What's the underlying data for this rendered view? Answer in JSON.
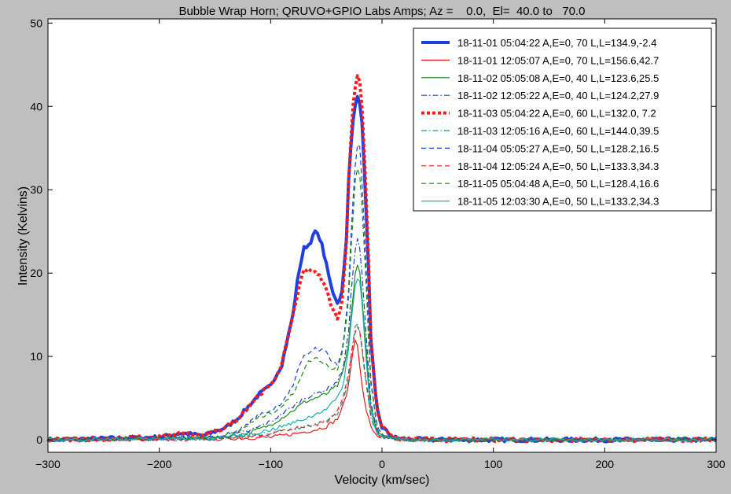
{
  "chart_data": {
    "type": "line",
    "title": "Bubble Wrap Horn; QRUVO+GPIO Labs Amps; Az =    0.0,  El=  40.0 to   70.0",
    "xlabel": "Velocity (km/sec)",
    "ylabel": "Intensity (Kelvins)",
    "xlim": [
      -300,
      300
    ],
    "ylim": [
      -1.5,
      50.5
    ],
    "xticks": [
      -300,
      -200,
      -100,
      0,
      100,
      200,
      300
    ],
    "xtick_labels": [
      "−300",
      "−200",
      "−100",
      "0",
      "100",
      "200",
      "300"
    ],
    "yticks": [
      0,
      10,
      20,
      30,
      40,
      50
    ],
    "ytick_labels": [
      "0",
      "10",
      "20",
      "30",
      "40",
      "50"
    ],
    "grid": false,
    "legend_position": "top-right",
    "series": [
      {
        "name": "18-11-01 05:04:22 A,E=0,  70 L,L=134.9,-2.4",
        "color": "#1f3fe0",
        "style": "solid",
        "width": 4,
        "x": [
          -300,
          -200,
          -180,
          -160,
          -140,
          -130,
          -120,
          -110,
          -100,
          -90,
          -80,
          -75,
          -70,
          -65,
          -60,
          -55,
          -50,
          -45,
          -40,
          -37,
          -35,
          -32,
          -30,
          -27,
          -25,
          -22,
          -20,
          -18,
          -15,
          -12,
          -10,
          -5,
          0,
          10,
          20,
          50,
          100,
          200,
          300
        ],
        "y": [
          0,
          0.3,
          0.8,
          0.5,
          1.5,
          2.5,
          4,
          5.5,
          6.5,
          9,
          15,
          20,
          23,
          23.5,
          25,
          24,
          21,
          18,
          16.5,
          17,
          19,
          24,
          31,
          37,
          40,
          41,
          40.5,
          38,
          30,
          20,
          12,
          4,
          1.5,
          0.3,
          0.1,
          0,
          0,
          0,
          0
        ]
      },
      {
        "name": "18-11-01 12:05:07 A,E=0,  70 L,L=156.6,42.7",
        "color": "#e41a1c",
        "style": "solid",
        "width": 1.2,
        "x": [
          -300,
          -150,
          -100,
          -80,
          -60,
          -50,
          -40,
          -35,
          -30,
          -27,
          -24,
          -22,
          -20,
          -18,
          -15,
          -12,
          -10,
          -5,
          0,
          20,
          300
        ],
        "y": [
          0,
          0.1,
          0.3,
          0.7,
          1.2,
          1.6,
          2.5,
          4,
          6.5,
          10,
          12,
          11.5,
          9,
          6.5,
          4,
          2.5,
          1.5,
          0.6,
          0.2,
          0,
          0
        ]
      },
      {
        "name": "18-11-02 05:05:08 A,E=0,  40 L,L=123.6,25.5",
        "color": "#1a8a1a",
        "style": "solid",
        "width": 1.2,
        "x": [
          -300,
          -150,
          -120,
          -100,
          -80,
          -70,
          -60,
          -50,
          -40,
          -35,
          -30,
          -27,
          -24,
          -22,
          -20,
          -18,
          -15,
          -12,
          -10,
          -5,
          0,
          20,
          300
        ],
        "y": [
          0,
          0.2,
          0.8,
          1.8,
          3.5,
          4.5,
          5,
          5.5,
          6.5,
          8,
          11.5,
          16,
          20,
          21,
          20,
          17,
          12,
          7,
          4,
          1.2,
          0.4,
          0,
          0
        ]
      },
      {
        "name": "18-11-02 12:05:22 A,E=0,  40 L,L=124.2,27.9",
        "color": "#1f3fbf",
        "style": "dashdot",
        "width": 1.2,
        "x": [
          -300,
          -150,
          -120,
          -100,
          -80,
          -70,
          -60,
          -50,
          -40,
          -35,
          -30,
          -27,
          -24,
          -22,
          -20,
          -18,
          -15,
          -12,
          -10,
          -5,
          0,
          20,
          300
        ],
        "y": [
          0,
          0.2,
          1,
          2.2,
          4,
          5,
          5.5,
          6,
          7,
          8.5,
          13,
          19,
          23,
          24,
          23,
          20,
          14,
          8,
          4.5,
          1.3,
          0.4,
          0,
          0
        ]
      },
      {
        "name": "18-11-03 05:04:22 A,E=0,  60 L,L=132.0, 7.2",
        "color": "#ff1a1a",
        "style": "dotted",
        "width": 4,
        "x": [
          -300,
          -200,
          -180,
          -160,
          -140,
          -130,
          -120,
          -110,
          -100,
          -90,
          -80,
          -75,
          -70,
          -65,
          -60,
          -55,
          -50,
          -45,
          -40,
          -37,
          -35,
          -32,
          -30,
          -27,
          -25,
          -22,
          -20,
          -18,
          -15,
          -12,
          -10,
          -5,
          0,
          10,
          20,
          50,
          100,
          200,
          300
        ],
        "y": [
          0,
          0.3,
          0.8,
          0.5,
          1.5,
          2.5,
          4,
          5.5,
          6.5,
          9,
          15,
          18,
          20.5,
          20.5,
          20,
          19.5,
          18,
          16,
          14.5,
          15.5,
          18,
          24,
          31,
          38,
          42,
          43.5,
          43,
          40,
          32,
          21,
          12,
          4,
          1.5,
          0.3,
          0.1,
          0,
          0,
          0,
          0
        ]
      },
      {
        "name": "18-11-03 12:05:16 A,E=0,  60 L,L=144.0,39.5",
        "color": "#1a9a9a",
        "style": "dashdot",
        "width": 1.2,
        "x": [
          -300,
          -150,
          -120,
          -100,
          -80,
          -60,
          -50,
          -40,
          -35,
          -30,
          -27,
          -24,
          -22,
          -20,
          -18,
          -15,
          -12,
          -10,
          -5,
          0,
          20,
          300
        ],
        "y": [
          0,
          0.1,
          0.4,
          0.8,
          1.3,
          1.8,
          2.2,
          3.2,
          4.5,
          7.5,
          11,
          13.5,
          14,
          13,
          11,
          7.5,
          4.5,
          2.5,
          0.8,
          0.3,
          0,
          0
        ]
      },
      {
        "name": "18-11-04 05:05:27 A,E=0,  50 L,L=128.2,16.5",
        "color": "#1f3fe0",
        "style": "dashed",
        "width": 1.2,
        "x": [
          -300,
          -150,
          -130,
          -120,
          -110,
          -100,
          -90,
          -80,
          -75,
          -70,
          -65,
          -60,
          -55,
          -50,
          -45,
          -40,
          -35,
          -30,
          -27,
          -24,
          -22,
          -20,
          -18,
          -15,
          -12,
          -10,
          -5,
          0,
          20,
          300
        ],
        "y": [
          0,
          0.3,
          1,
          2,
          3,
          3.5,
          4.5,
          6.5,
          8.5,
          10,
          10.5,
          11,
          10.8,
          10.5,
          9.5,
          9,
          11,
          18,
          27,
          33,
          35.5,
          35,
          31,
          23,
          13,
          7,
          2,
          0.6,
          0,
          0
        ]
      },
      {
        "name": "18-11-04 12:05:24 A,E=0,  50 L,L=133.3,34.3",
        "color": "#e41a1c",
        "style": "dashed",
        "width": 1.2,
        "x": [
          -300,
          -150,
          -120,
          -100,
          -80,
          -60,
          -50,
          -40,
          -35,
          -30,
          -27,
          -24,
          -22,
          -20,
          -18,
          -15,
          -12,
          -10,
          -5,
          0,
          20,
          300
        ],
        "y": [
          0,
          0.1,
          0.4,
          0.8,
          1.3,
          1.8,
          2.2,
          3.5,
          5,
          8,
          11,
          13,
          13.5,
          13,
          11,
          8,
          5,
          3,
          1,
          0.3,
          0,
          0
        ]
      },
      {
        "name": "18-11-05 05:04:48 A,E=0,  50 L,L=128.4,16.6",
        "color": "#1a8a1a",
        "style": "dashed",
        "width": 1.2,
        "x": [
          -300,
          -150,
          -130,
          -120,
          -110,
          -100,
          -90,
          -80,
          -75,
          -70,
          -65,
          -60,
          -55,
          -50,
          -45,
          -40,
          -35,
          -30,
          -27,
          -24,
          -22,
          -20,
          -18,
          -15,
          -12,
          -10,
          -5,
          0,
          20,
          300
        ],
        "y": [
          0,
          0.3,
          0.9,
          1.8,
          2.7,
          3.2,
          4,
          5.5,
          7,
          8.5,
          9.5,
          9.8,
          9.5,
          9,
          8.5,
          8.5,
          11,
          17,
          25,
          31,
          32.5,
          31.5,
          28,
          21,
          12,
          6.5,
          2,
          0.6,
          0,
          0
        ]
      },
      {
        "name": "18-11-05 12:03:30 A,E=0,  50 L,L=133.2,34.3",
        "color": "#1ab0b0",
        "style": "solid",
        "width": 1.2,
        "x": [
          -300,
          -150,
          -120,
          -100,
          -80,
          -60,
          -50,
          -40,
          -35,
          -30,
          -27,
          -24,
          -22,
          -20,
          -18,
          -15,
          -12,
          -10,
          -5,
          0,
          20,
          300
        ],
        "y": [
          0,
          0.2,
          0.6,
          1.2,
          2,
          3,
          3.8,
          5,
          6.5,
          11,
          15,
          18.5,
          19.5,
          19,
          16.5,
          11,
          6,
          3.5,
          1,
          0.3,
          0,
          0
        ]
      }
    ]
  }
}
